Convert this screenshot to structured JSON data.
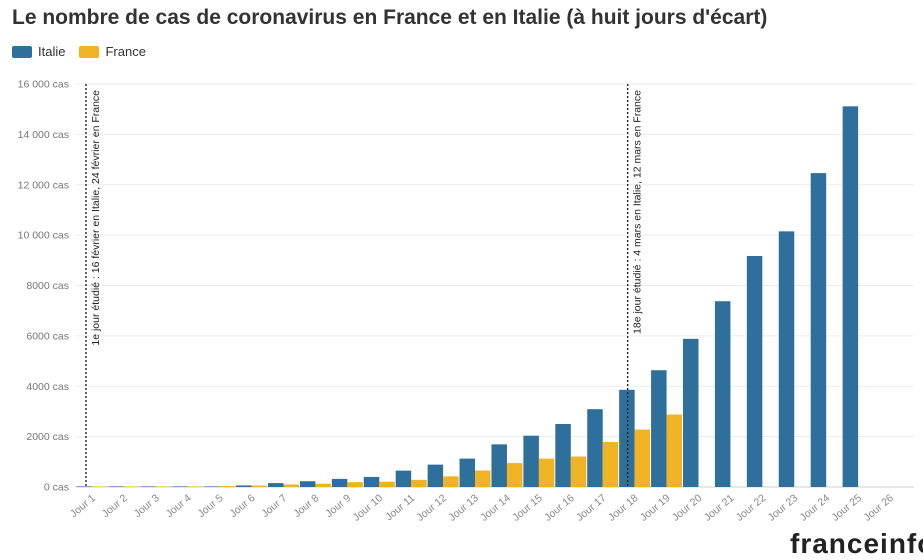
{
  "chart_data": {
    "type": "bar",
    "title": "Le nombre de cas de coronavirus en France et en Italie (à huit jours d'écart)",
    "categories": [
      "Jour 1",
      "Jour 2",
      "Jour 3",
      "Jour 4",
      "Jour 5",
      "Jour 6",
      "Jour 7",
      "Jour 8",
      "Jour 9",
      "Jour 10",
      "Jour 11",
      "Jour 12",
      "Jour 13",
      "Jour 14",
      "Jour 15",
      "Jour 16",
      "Jour 17",
      "Jour 18",
      "Jour 19",
      "Jour 20",
      "Jour 21",
      "Jour 22",
      "Jour 23",
      "Jour 24",
      "Jour 25",
      "Jour 26"
    ],
    "series": [
      {
        "name": "Italie",
        "color": "#2e6f9b",
        "values": [
          3,
          3,
          3,
          3,
          20,
          62,
          155,
          229,
          322,
          400,
          650,
          888,
          1128,
          1694,
          2036,
          2502,
          3089,
          3858,
          4636,
          5883,
          7375,
          9172,
          10149,
          12462,
          15113,
          null
        ]
      },
      {
        "name": "France",
        "color": "#f0b323",
        "values": [
          12,
          12,
          12,
          18,
          38,
          57,
          100,
          130,
          191,
          212,
          285,
          423,
          653,
          949,
          1126,
          1209,
          1784,
          2281,
          2876,
          null,
          null,
          null,
          null,
          null,
          null,
          null
        ]
      }
    ],
    "y_ticks": [
      0,
      2000,
      4000,
      6000,
      8000,
      10000,
      12000,
      14000,
      16000
    ],
    "y_tick_labels": [
      "0 cas",
      "2000 cas",
      "4000 cas",
      "6000 cas",
      "8000 cas",
      "10 000 cas",
      "12 000 cas",
      "14 000 cas",
      "16 000 cas"
    ],
    "ylim": [
      0,
      16000
    ],
    "grid": true,
    "legend": "top-left",
    "annotations": [
      {
        "category": "Jour 1",
        "text": "1e jour étudié : 16 février en Italie, 24 février en France"
      },
      {
        "category": "Jour 18",
        "text": "18e jour étudié : 4 mars en Italie, 12 mars en France"
      }
    ]
  },
  "legend": {
    "italie": "Italie",
    "france": "France"
  },
  "footer": {
    "logo": "franceinfo"
  }
}
